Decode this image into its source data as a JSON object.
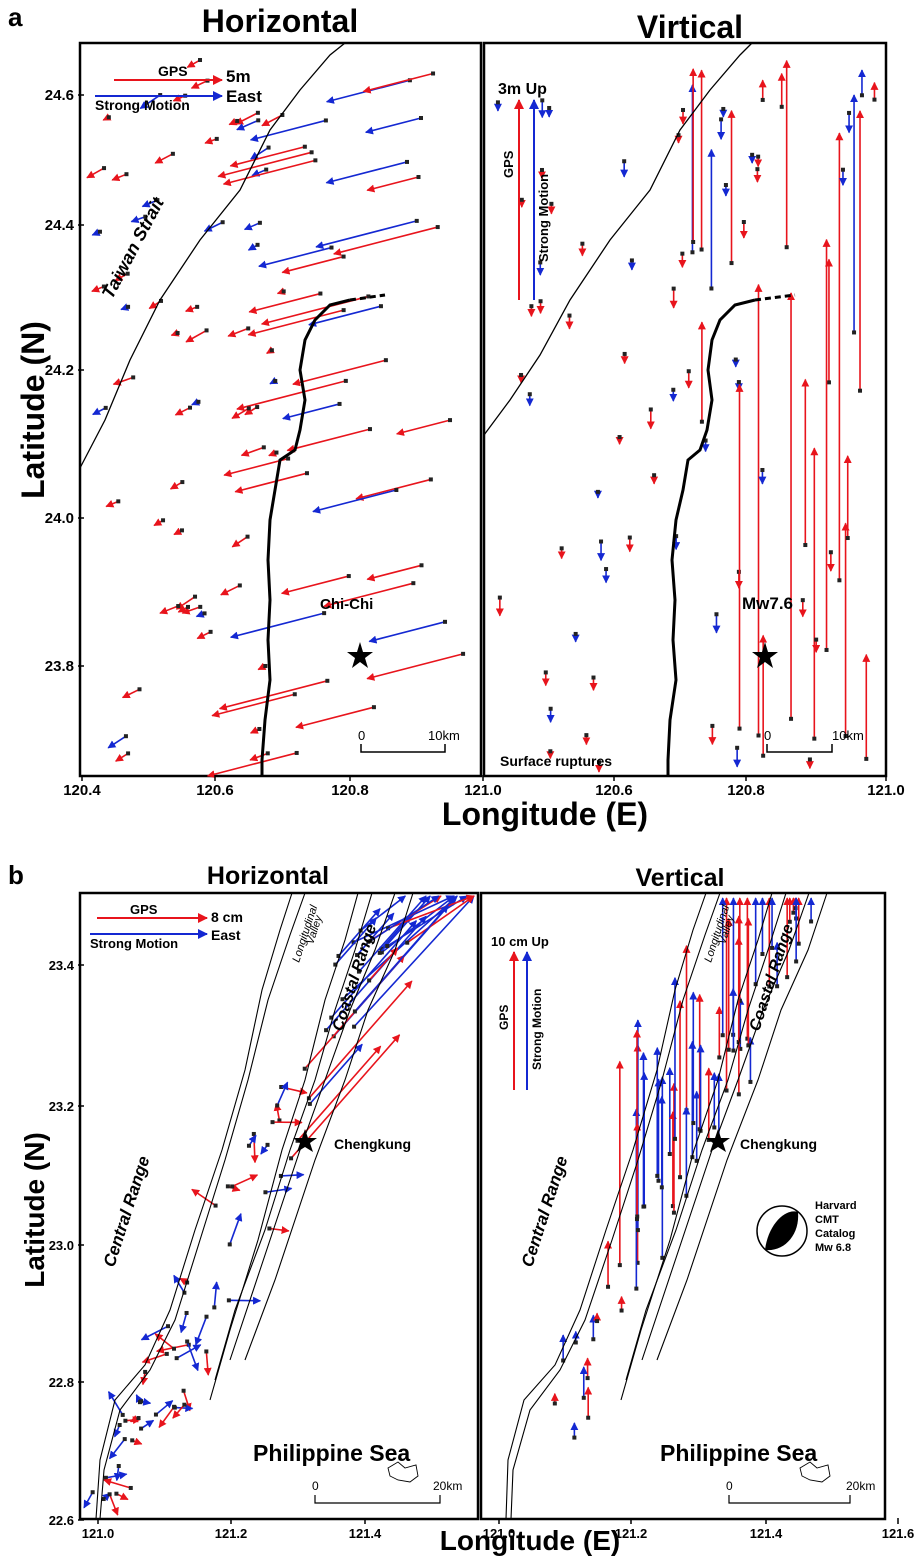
{
  "panels": {
    "a": {
      "label": "a",
      "left_title": "Horizontal",
      "right_title": "Virtical",
      "ylabel": "Latitude (N)",
      "xlabel": "Longitude (E)",
      "lat_ticks": [
        "24.6",
        "24.4",
        "24.2",
        "24.0",
        "23.8"
      ],
      "lon_ticks": [
        "120.4",
        "120.6",
        "120.8",
        "121.0",
        "120.6",
        "120.8",
        "121.0"
      ],
      "legend": {
        "gps": "GPS",
        "strong_motion": "Strong Motion",
        "h_scale": "5m",
        "h_dir": "East",
        "v_scale": "3m Up",
        "v_gps": "GPS",
        "v_sm": "Strong Motion"
      },
      "labels": {
        "strait": "Taiwan Strait",
        "epicenter_h": "Chi-Chi",
        "epicenter_v": "Mw7.6",
        "ruptures": "Surface ruptures"
      },
      "scalebar": {
        "zero": "0",
        "len": "10km"
      }
    },
    "b": {
      "label": "b",
      "left_title": "Horizontal",
      "right_title": "Vertical",
      "ylabel": "Latitude (N)",
      "xlabel": "Longitude (E)",
      "lat_ticks": [
        "23.4",
        "23.2",
        "23.0",
        "22.8",
        "22.6"
      ],
      "lon_ticks": [
        "121.0",
        "121.2",
        "121.4",
        "121.0",
        "121.2",
        "121.4",
        "121.6"
      ],
      "legend": {
        "gps": "GPS",
        "strong_motion": "Strong Motion",
        "h_scale": "8 cm",
        "h_dir": "East",
        "v_scale": "10 cm Up",
        "v_gps": "GPS",
        "v_sm": "Strong Motion"
      },
      "labels": {
        "central": "Central Range",
        "coastal": "Coastal Range",
        "valley_1": "Longitudinal",
        "valley_2": "Valley",
        "sea": "Philippine Sea",
        "epicenter": "Chengkung",
        "cmt_1": "Harvard",
        "cmt_2": "CMT",
        "cmt_3": "Catalog",
        "cmt_4": "Mw 6.8"
      },
      "scalebar": {
        "zero": "0",
        "len": "20km"
      }
    }
  },
  "colors": {
    "gps": "#e8141c",
    "strong_motion": "#1428d2",
    "station": "#222222",
    "coast": "#000000"
  }
}
